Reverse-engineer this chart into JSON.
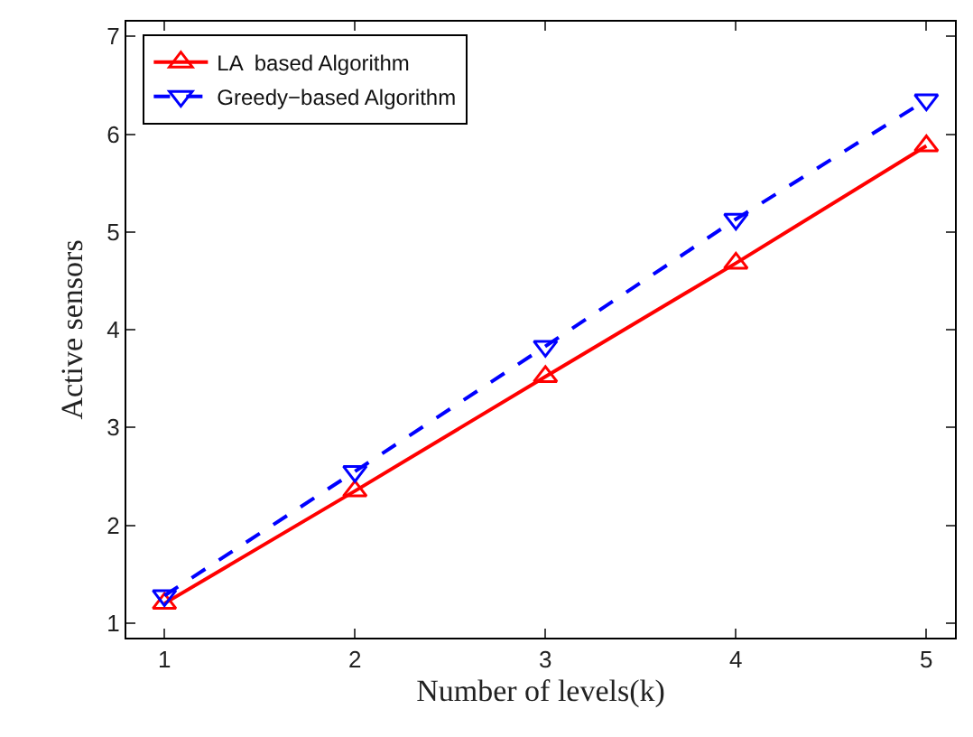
{
  "chart_data": {
    "type": "line",
    "xlabel": "Number of levels(k)",
    "ylabel": "Active sensors",
    "x": [
      1,
      2,
      3,
      4,
      5
    ],
    "series": [
      {
        "name": "LA  based Algorithm",
        "color": "#ff0000",
        "values": [
          1.2,
          2.35,
          3.52,
          4.68,
          5.88
        ],
        "marker": "triangle",
        "line_style": "solid"
      },
      {
        "name": "Greedy−based Algorithm",
        "color": "#0000ff",
        "values": [
          1.28,
          2.55,
          3.83,
          5.13,
          6.35
        ],
        "marker": "triangle-down",
        "line_style": "dashed"
      }
    ],
    "xlim": [
      0.8,
      5.15
    ],
    "xticks": [
      1,
      2,
      3,
      4,
      5
    ],
    "ylim": [
      0.85,
      7.15
    ],
    "yticks": [
      1,
      2,
      3,
      4,
      5,
      6,
      7
    ],
    "legend": "top left"
  }
}
